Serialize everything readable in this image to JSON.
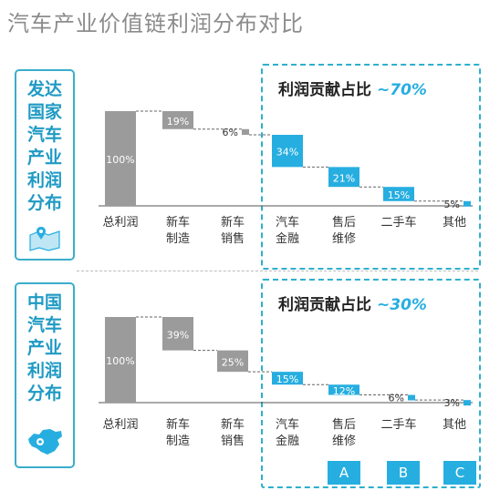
{
  "title": "汽车产业价值链利润分布对比",
  "colors": {
    "gray": "#9b9b9b",
    "blue": "#27aee0",
    "accent": "#1f9ac4"
  },
  "chart_data": [
    {
      "type": "bar",
      "panel_label": [
        "发达",
        "国家",
        "汽车",
        "产业",
        "利润",
        "分布"
      ],
      "categories": [
        [
          "总利润"
        ],
        [
          "新车",
          "制造"
        ],
        [
          "新车",
          "销售"
        ],
        [
          "汽车",
          "金融"
        ],
        [
          "售后",
          "维修"
        ],
        [
          "二手车"
        ],
        [
          "其他"
        ]
      ],
      "values": [
        100,
        19,
        6,
        34,
        21,
        15,
        5
      ],
      "labels": [
        "100%",
        "19%",
        "6%",
        "34%",
        "21%",
        "15%",
        "5%"
      ],
      "highlight_title": "利润贡献占比",
      "highlight_value": "~70%"
    },
    {
      "type": "bar",
      "panel_label": [
        "中国",
        "汽车",
        "产业",
        "利润",
        "分布"
      ],
      "categories": [
        [
          "总利润"
        ],
        [
          "新车",
          "制造"
        ],
        [
          "新车",
          "销售"
        ],
        [
          "汽车",
          "金融"
        ],
        [
          "售后",
          "维修"
        ],
        [
          "二手车"
        ],
        [
          "其他"
        ]
      ],
      "values": [
        100,
        39,
        25,
        15,
        12,
        6,
        3
      ],
      "labels": [
        "100%",
        "39%",
        "25%",
        "15%",
        "12%",
        "6%",
        "3%"
      ],
      "highlight_title": "利润贡献占比",
      "highlight_value": "~30%"
    }
  ],
  "badges": [
    "A",
    "B",
    "C"
  ]
}
